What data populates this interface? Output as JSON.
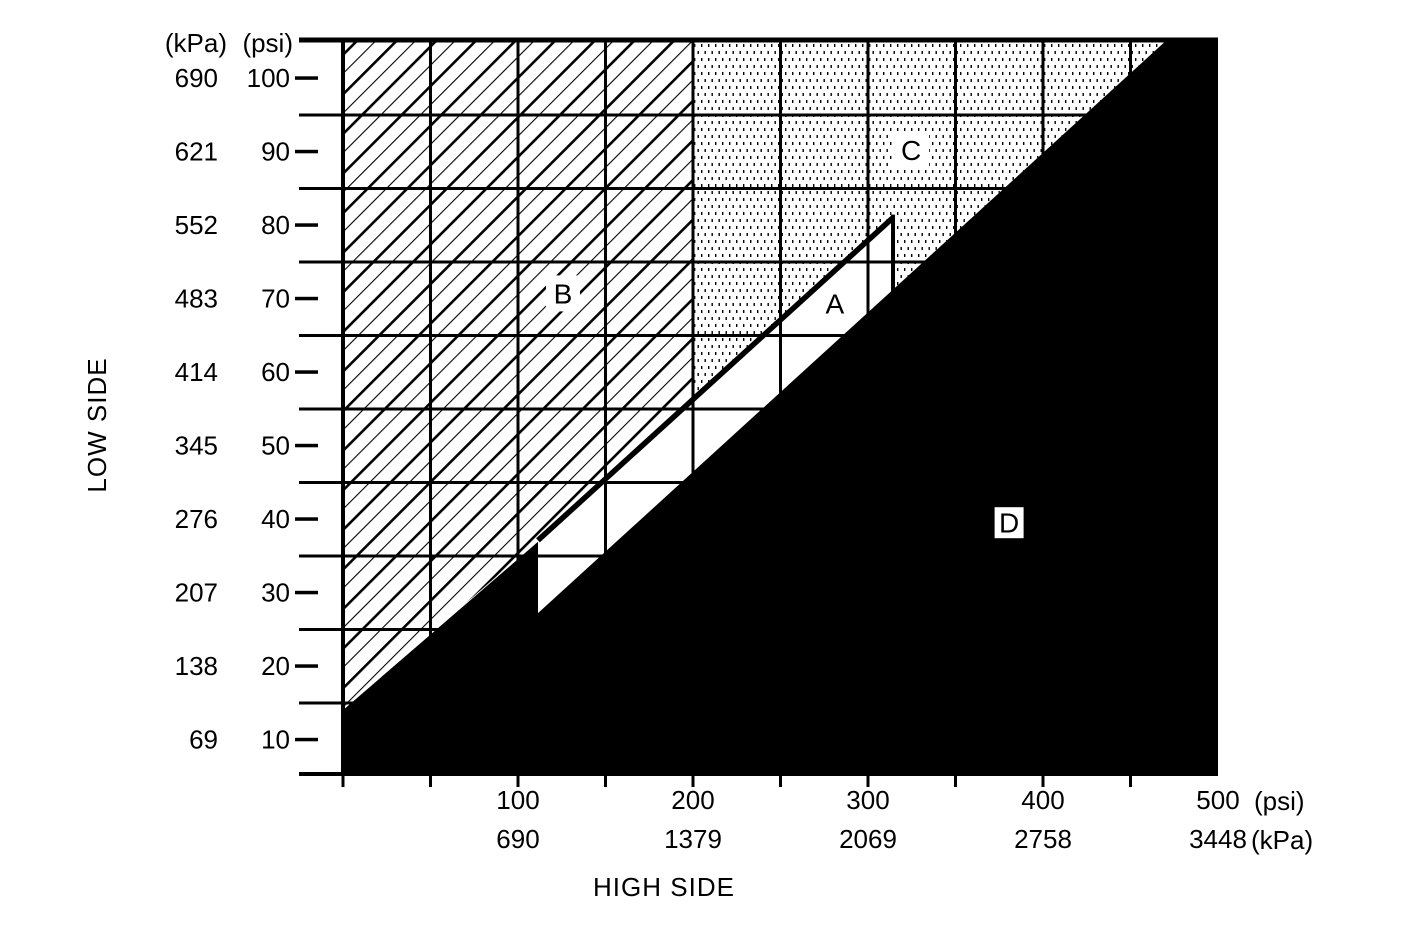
{
  "colors": {
    "ink": "#000000",
    "paper": "#ffffff"
  },
  "chart_data": {
    "type": "area",
    "title": "",
    "xlabel": "HIGH SIDE",
    "ylabel": "LOW SIDE",
    "x_axis": {
      "unit_labels": [
        "(psi)",
        "(kPa)"
      ],
      "tick_values_psi": [
        100,
        200,
        300,
        400,
        500
      ],
      "tick_values_kpa": [
        690,
        1379,
        2069,
        2758,
        3448
      ],
      "minor_tick_psi": [
        0,
        50,
        100,
        150,
        200,
        250,
        300,
        350,
        400,
        450
      ],
      "gridlines_psi": [
        50,
        100,
        150,
        200,
        250,
        300,
        350,
        400,
        450
      ],
      "range_psi": [
        0,
        500
      ]
    },
    "y_axis": {
      "unit_labels": [
        "(kPa)",
        "(psi)"
      ],
      "tick_values_psi": [
        100,
        90,
        80,
        70,
        60,
        50,
        40,
        30,
        20,
        10
      ],
      "tick_values_kpa": [
        690,
        621,
        552,
        483,
        414,
        345,
        276,
        207,
        138,
        69
      ],
      "gridlines_psi": [
        15,
        25,
        35,
        45,
        55,
        65,
        75,
        85,
        95
      ],
      "range_psi": [
        5.3,
        105.2
      ]
    },
    "regions": [
      {
        "label": "A",
        "fill": "white",
        "points_psi": [
          [
            111.4,
            37.1
          ],
          [
            314.3,
            81.0
          ],
          [
            314.3,
            71.2
          ],
          [
            111.4,
            27.2
          ]
        ],
        "label_pos_psi": [
          281.1,
          69.3
        ],
        "label_halo": false
      },
      {
        "label": "B",
        "fill": "diagonal-hatch",
        "points_psi": [
          [
            0,
            105.2
          ],
          [
            200,
            105.2
          ],
          [
            200,
            56.3
          ],
          [
            111.4,
            37.1
          ],
          [
            0,
            14
          ]
        ],
        "label_pos_psi": [
          125.7,
          70.7
        ],
        "label_halo": true
      },
      {
        "label": "C",
        "fill": "stipple-dots",
        "points_psi": [
          [
            200,
            105.2
          ],
          [
            470.9,
            105.2
          ],
          [
            314.3,
            71.2
          ],
          [
            314.3,
            81.0
          ],
          [
            200,
            56.3
          ]
        ],
        "label_pos_psi": [
          324.6,
          90.2
        ],
        "label_halo": true
      },
      {
        "label": "D",
        "fill": "solid-black",
        "points_psi": [
          [
            0,
            14
          ],
          [
            111.4,
            36.9
          ],
          [
            111.4,
            27.2
          ],
          [
            470.9,
            105.2
          ],
          [
            500,
            105.2
          ],
          [
            500,
            5.3
          ],
          [
            0,
            5.3
          ]
        ],
        "label_pos_psi": [
          380.6,
          39.5
        ],
        "label_halo": true
      }
    ],
    "boundary_line_psi": [
      [
        111.4,
        37.1
      ],
      [
        314.3,
        81.0
      ]
    ],
    "boundary_drop_psi": [
      [
        314.3,
        81.0
      ],
      [
        314.3,
        71.2
      ]
    ]
  }
}
